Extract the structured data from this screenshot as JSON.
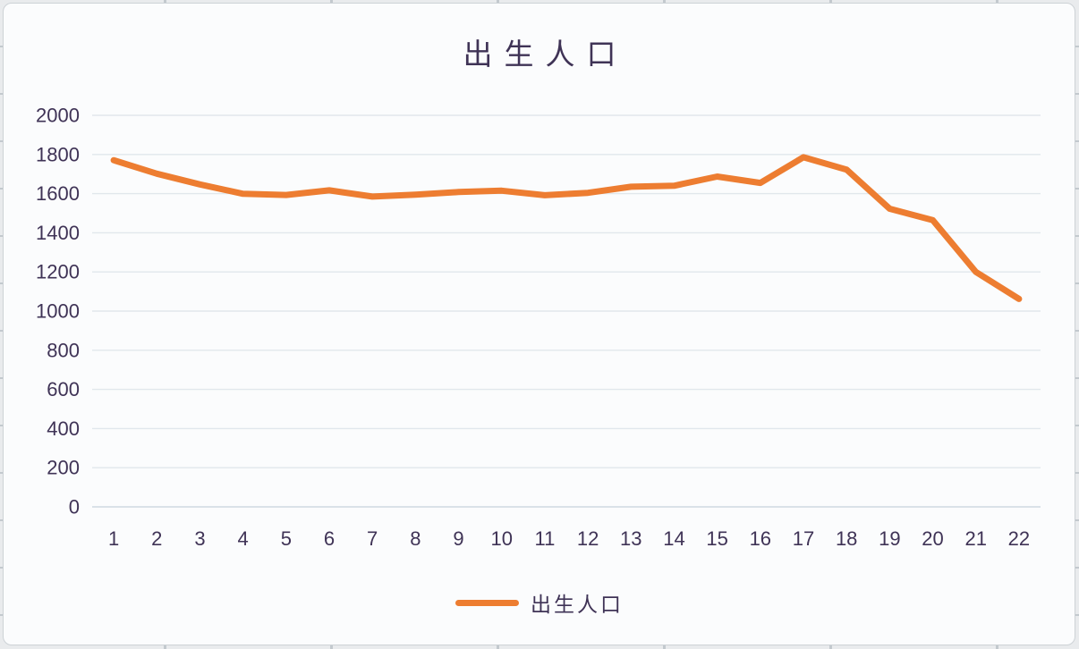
{
  "window": {
    "background_color": "#E9EBED",
    "card_background": "#FBFCFD",
    "card_border_color": "#CDD2D6"
  },
  "chart_data": {
    "type": "line",
    "title": "出生人口",
    "categories": [
      1,
      2,
      3,
      4,
      5,
      6,
      7,
      8,
      9,
      10,
      11,
      12,
      13,
      14,
      15,
      16,
      17,
      18,
      19,
      20,
      21,
      22
    ],
    "series": [
      {
        "name": "出生人口",
        "values": [
          1771,
          1702,
          1647,
          1599,
          1593,
          1617,
          1585,
          1595,
          1608,
          1615,
          1592,
          1604,
          1635,
          1640,
          1687,
          1655,
          1786,
          1723,
          1523,
          1465,
          1200,
          1062
        ]
      }
    ],
    "ylim": [
      0,
      2000
    ],
    "ytick_step": 200,
    "ytick_labels": [
      "0",
      "200",
      "400",
      "600",
      "800",
      "1000",
      "1200",
      "1400",
      "1600",
      "1800",
      "2000"
    ],
    "grid": true,
    "legend_position": "bottom",
    "line_color": "#ED7D31",
    "gridline_color": "#E1E7EC",
    "axis_line_color": "#CFD9E1",
    "text_color": "#3F3356"
  }
}
